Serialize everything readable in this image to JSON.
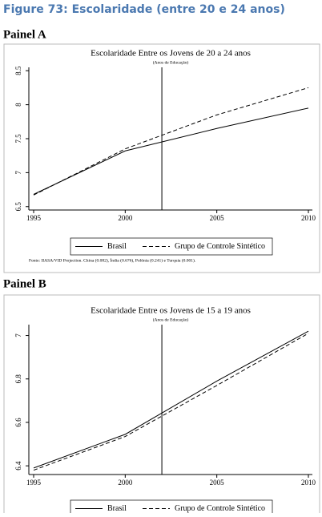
{
  "figure_title": "Figure 73: Escolaridade (entre 20 e 24 anos)",
  "chart_data": [
    {
      "type": "line",
      "panel": "Painel A",
      "title": "Escolaridade Entre os Jovens de 20 a 24 anos",
      "subtitle": "(Anos de Educação)",
      "x": [
        1995,
        2000,
        2005,
        2010
      ],
      "series": [
        {
          "name": "Brasil",
          "color": "#000000",
          "style": "solid",
          "values": [
            6.68,
            7.32,
            7.65,
            7.95
          ]
        },
        {
          "name": "Grupo de Controle Sintético",
          "color": "#000000",
          "style": "dashed",
          "values": [
            6.67,
            7.35,
            7.85,
            8.25
          ]
        }
      ],
      "vline": 2002,
      "xlim": [
        1995,
        2010
      ],
      "xticks": [
        1995,
        2000,
        2005,
        2010
      ],
      "ylim": [
        6.45,
        8.55
      ],
      "yticks": [
        6.5,
        7,
        7.5,
        8,
        8.5
      ],
      "legend": "bottom",
      "note": "Fonte: IIASA/VID Projection.  China (0.082), Índia (0.676), Polônia (0.241) e Turquia (0.001)."
    },
    {
      "type": "line",
      "panel": "Painel B",
      "title": "Escolaridade Entre os Jovens de 15 a 19 anos",
      "subtitle": "(Anos de Educação)",
      "x": [
        1995,
        2000,
        2005,
        2010
      ],
      "series": [
        {
          "name": "Brasil",
          "color": "#000000",
          "style": "solid",
          "values": [
            6.39,
            6.545,
            6.79,
            7.02
          ]
        },
        {
          "name": "Grupo de Controle Sintético",
          "color": "#000000",
          "style": "dashed",
          "values": [
            6.38,
            6.535,
            6.77,
            7.01
          ]
        }
      ],
      "vline": 2002,
      "xlim": [
        1995,
        2010
      ],
      "xticks": [
        1995,
        2000,
        2005,
        2010
      ],
      "ylim": [
        6.36,
        7.05
      ],
      "yticks": [
        6.4,
        6.6,
        6.8,
        7
      ],
      "legend": "bottom"
    }
  ]
}
